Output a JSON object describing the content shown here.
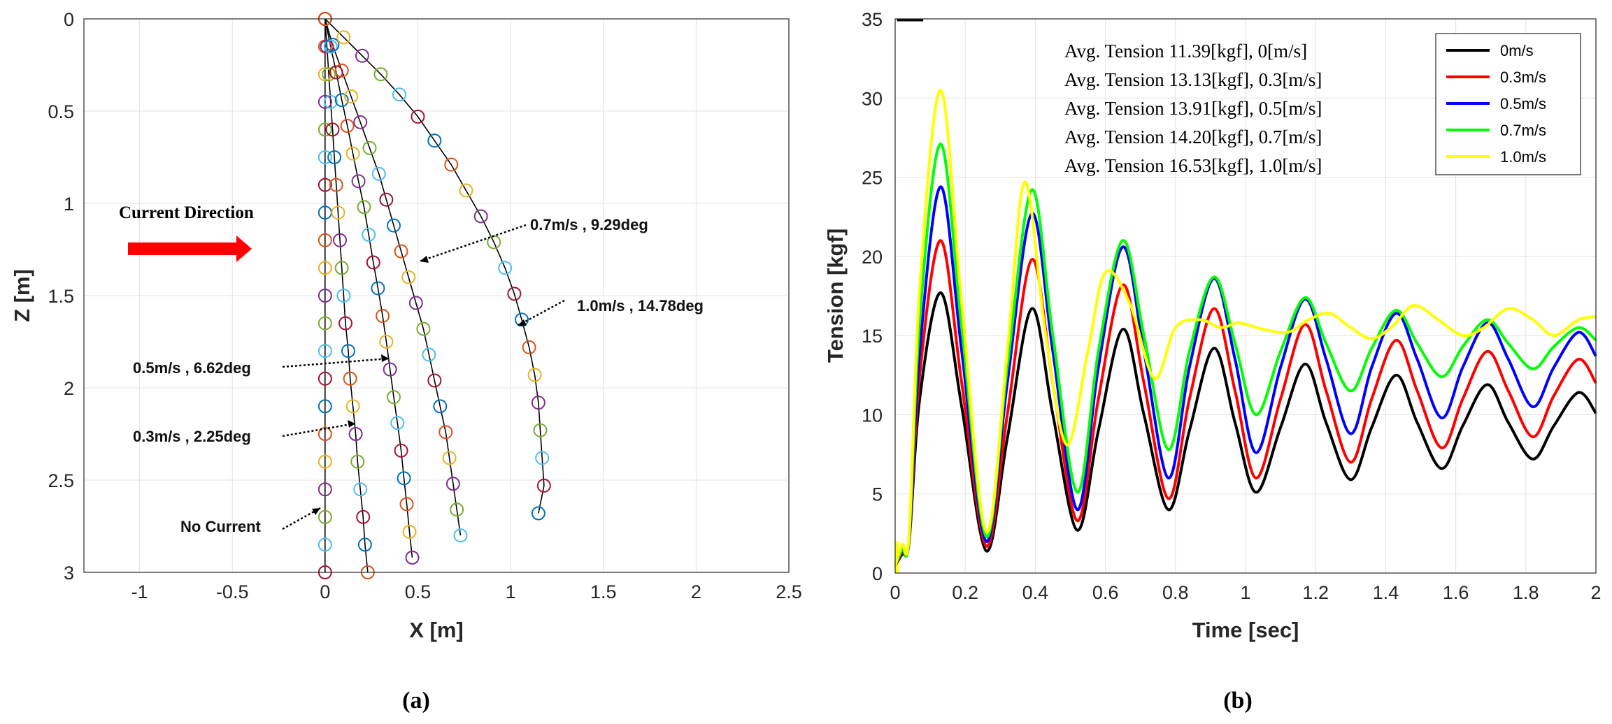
{
  "chart_data": [
    {
      "type": "scatter",
      "panel_label": "(a)",
      "title": "",
      "xlabel": "X [m]",
      "ylabel": "Z [m]",
      "xlim": [
        -1.3,
        2.5
      ],
      "ylim": [
        0,
        3
      ],
      "y_reversed": true,
      "grid": true,
      "xticks": [
        "-1",
        "-0.5",
        "0",
        "0.5",
        "1",
        "1.5",
        "2",
        "2.5"
      ],
      "yticks": [
        "0",
        "0.5",
        "1",
        "1.5",
        "2",
        "2.5",
        "3"
      ],
      "series": [
        {
          "name": "No Current",
          "angle_deg": 0,
          "x": [
            0,
            0,
            0,
            0,
            0,
            0,
            0,
            0,
            0,
            0,
            0,
            0,
            0,
            0,
            0,
            0,
            0,
            0,
            0,
            0,
            0
          ],
          "z": [
            0,
            0.15,
            0.3,
            0.45,
            0.6,
            0.75,
            0.9,
            1.05,
            1.2,
            1.35,
            1.5,
            1.65,
            1.8,
            1.95,
            2.1,
            2.25,
            2.4,
            2.55,
            2.7,
            2.85,
            3.0
          ]
        },
        {
          "name": "0.3m/s",
          "angle_deg": 2.25,
          "x": [
            0,
            0.01,
            0.02,
            0.03,
            0.04,
            0.05,
            0.06,
            0.07,
            0.08,
            0.09,
            0.1,
            0.11,
            0.125,
            0.135,
            0.15,
            0.165,
            0.175,
            0.19,
            0.205,
            0.215,
            0.23
          ],
          "z": [
            0,
            0.15,
            0.3,
            0.45,
            0.6,
            0.75,
            0.9,
            1.05,
            1.2,
            1.35,
            1.5,
            1.65,
            1.8,
            1.95,
            2.1,
            2.25,
            2.4,
            2.55,
            2.7,
            2.85,
            3.0
          ]
        },
        {
          "name": "0.5m/s",
          "angle_deg": 6.62,
          "x": [
            0,
            0.03,
            0.06,
            0.09,
            0.12,
            0.15,
            0.18,
            0.21,
            0.235,
            0.26,
            0.285,
            0.31,
            0.33,
            0.35,
            0.37,
            0.39,
            0.41,
            0.425,
            0.44,
            0.455,
            0.47
          ],
          "z": [
            0,
            0.15,
            0.29,
            0.44,
            0.58,
            0.73,
            0.88,
            1.02,
            1.17,
            1.32,
            1.46,
            1.61,
            1.75,
            1.9,
            2.05,
            2.19,
            2.34,
            2.49,
            2.63,
            2.78,
            2.92
          ]
        },
        {
          "name": "0.7m/s",
          "angle_deg": 9.29,
          "x": [
            0,
            0.04,
            0.09,
            0.14,
            0.19,
            0.24,
            0.29,
            0.33,
            0.37,
            0.41,
            0.45,
            0.49,
            0.53,
            0.56,
            0.59,
            0.62,
            0.65,
            0.67,
            0.69,
            0.71,
            0.73
          ],
          "z": [
            0,
            0.14,
            0.28,
            0.42,
            0.56,
            0.7,
            0.84,
            0.98,
            1.12,
            1.26,
            1.4,
            1.54,
            1.68,
            1.82,
            1.96,
            2.1,
            2.24,
            2.38,
            2.52,
            2.66,
            2.8
          ]
        },
        {
          "name": "1.0m/s",
          "angle_deg": 14.78,
          "x": [
            0,
            0.1,
            0.2,
            0.3,
            0.4,
            0.5,
            0.59,
            0.68,
            0.76,
            0.84,
            0.91,
            0.97,
            1.02,
            1.06,
            1.1,
            1.13,
            1.15,
            1.16,
            1.17,
            1.18,
            1.15
          ],
          "z": [
            0,
            0.1,
            0.2,
            0.3,
            0.41,
            0.53,
            0.66,
            0.79,
            0.93,
            1.07,
            1.21,
            1.35,
            1.49,
            1.63,
            1.78,
            1.93,
            2.08,
            2.23,
            2.38,
            2.53,
            2.68
          ]
        }
      ],
      "marker_colors": [
        "#0072BD",
        "#D95319",
        "#EDB120",
        "#7E2F8E",
        "#77AC30",
        "#4DBEEE",
        "#A2142F"
      ],
      "arrow_color": "#FF0000",
      "annotations": {
        "current_direction": "Current Direction",
        "a07": "0.7m/s , 9.29deg",
        "a10": "1.0m/s , 14.78deg",
        "a05": "0.5m/s , 6.62deg",
        "a03": "0.3m/s , 2.25deg",
        "a00": "No Current"
      }
    },
    {
      "type": "line",
      "panel_label": "(b)",
      "title": "",
      "xlabel": "Time [sec]",
      "ylabel": "Tension [kgf]",
      "xlim": [
        0,
        2
      ],
      "ylim": [
        0,
        35
      ],
      "grid": true,
      "xticks": [
        "0",
        "0.2",
        "0.4",
        "0.6",
        "0.8",
        "1",
        "1.2",
        "1.4",
        "1.6",
        "1.8",
        "2"
      ],
      "yticks": [
        "0",
        "5",
        "10",
        "15",
        "20",
        "25",
        "30",
        "35"
      ],
      "legend_position": "top-right",
      "series": [
        {
          "name": "0m/s",
          "color": "#000000",
          "points": [
            [
              0.02,
              1.2
            ],
            [
              0.04,
              2.0
            ],
            [
              0.07,
              11.0
            ],
            [
              0.13,
              17.7
            ],
            [
              0.19,
              10.5
            ],
            [
              0.26,
              1.4
            ],
            [
              0.32,
              8.5
            ],
            [
              0.39,
              16.7
            ],
            [
              0.45,
              10.0
            ],
            [
              0.52,
              2.7
            ],
            [
              0.58,
              9.0
            ],
            [
              0.65,
              15.4
            ],
            [
              0.71,
              10.0
            ],
            [
              0.78,
              4.0
            ],
            [
              0.84,
              9.0
            ],
            [
              0.91,
              14.2
            ],
            [
              0.97,
              9.5
            ],
            [
              1.03,
              5.1
            ],
            [
              1.1,
              9.2
            ],
            [
              1.17,
              13.2
            ],
            [
              1.23,
              9.5
            ],
            [
              1.3,
              5.9
            ],
            [
              1.36,
              9.2
            ],
            [
              1.43,
              12.5
            ],
            [
              1.49,
              9.5
            ],
            [
              1.56,
              6.6
            ],
            [
              1.62,
              9.3
            ],
            [
              1.69,
              11.9
            ],
            [
              1.75,
              9.5
            ],
            [
              1.82,
              7.2
            ],
            [
              1.88,
              9.3
            ],
            [
              1.95,
              11.4
            ],
            [
              2.0,
              10.1
            ]
          ]
        },
        {
          "name": "0.3m/s",
          "color": "#FF0000",
          "points": [
            [
              0.02,
              1.3
            ],
            [
              0.04,
              2.1
            ],
            [
              0.07,
              12.5
            ],
            [
              0.13,
              21.0
            ],
            [
              0.19,
              12.0
            ],
            [
              0.26,
              1.7
            ],
            [
              0.32,
              10.0
            ],
            [
              0.39,
              19.8
            ],
            [
              0.45,
              12.0
            ],
            [
              0.52,
              3.3
            ],
            [
              0.58,
              11.0
            ],
            [
              0.65,
              18.2
            ],
            [
              0.71,
              12.0
            ],
            [
              0.78,
              4.7
            ],
            [
              0.84,
              11.0
            ],
            [
              0.91,
              16.7
            ],
            [
              0.97,
              11.5
            ],
            [
              1.03,
              6.0
            ],
            [
              1.1,
              11.0
            ],
            [
              1.17,
              15.7
            ],
            [
              1.23,
              11.5
            ],
            [
              1.3,
              7.0
            ],
            [
              1.36,
              11.0
            ],
            [
              1.43,
              14.7
            ],
            [
              1.49,
              11.5
            ],
            [
              1.56,
              7.9
            ],
            [
              1.62,
              11.0
            ],
            [
              1.69,
              14.0
            ],
            [
              1.75,
              11.5
            ],
            [
              1.82,
              8.6
            ],
            [
              1.88,
              11.2
            ],
            [
              1.95,
              13.5
            ],
            [
              2.0,
              12.0
            ]
          ]
        },
        {
          "name": "0.5m/s",
          "color": "#0000FF",
          "points": [
            [
              0.02,
              1.4
            ],
            [
              0.04,
              2.2
            ],
            [
              0.07,
              14.0
            ],
            [
              0.13,
              24.4
            ],
            [
              0.19,
              14.0
            ],
            [
              0.26,
              2.0
            ],
            [
              0.32,
              12.0
            ],
            [
              0.39,
              22.7
            ],
            [
              0.45,
              14.0
            ],
            [
              0.52,
              4.0
            ],
            [
              0.58,
              13.0
            ],
            [
              0.65,
              20.6
            ],
            [
              0.71,
              14.0
            ],
            [
              0.78,
              6.0
            ],
            [
              0.84,
              13.0
            ],
            [
              0.91,
              18.6
            ],
            [
              0.97,
              13.5
            ],
            [
              1.03,
              7.6
            ],
            [
              1.1,
              13.0
            ],
            [
              1.17,
              17.3
            ],
            [
              1.23,
              13.5
            ],
            [
              1.3,
              8.8
            ],
            [
              1.36,
              13.0
            ],
            [
              1.43,
              16.4
            ],
            [
              1.49,
              13.5
            ],
            [
              1.56,
              9.8
            ],
            [
              1.62,
              13.0
            ],
            [
              1.69,
              15.8
            ],
            [
              1.75,
              13.5
            ],
            [
              1.82,
              10.5
            ],
            [
              1.88,
              13.0
            ],
            [
              1.95,
              15.2
            ],
            [
              2.0,
              13.7
            ]
          ]
        },
        {
          "name": "0.7m/s",
          "color": "#00FF00",
          "points": [
            [
              0.02,
              1.5
            ],
            [
              0.04,
              2.3
            ],
            [
              0.07,
              16.0
            ],
            [
              0.13,
              27.1
            ],
            [
              0.19,
              15.5
            ],
            [
              0.26,
              2.3
            ],
            [
              0.32,
              13.0
            ],
            [
              0.39,
              24.2
            ],
            [
              0.45,
              15.0
            ],
            [
              0.52,
              5.1
            ],
            [
              0.58,
              14.0
            ],
            [
              0.65,
              21.0
            ],
            [
              0.71,
              15.0
            ],
            [
              0.78,
              7.8
            ],
            [
              0.84,
              14.0
            ],
            [
              0.91,
              18.7
            ],
            [
              0.97,
              14.5
            ],
            [
              1.03,
              10.0
            ],
            [
              1.1,
              14.0
            ],
            [
              1.17,
              17.4
            ],
            [
              1.23,
              14.5
            ],
            [
              1.3,
              11.5
            ],
            [
              1.36,
              14.2
            ],
            [
              1.43,
              16.6
            ],
            [
              1.49,
              14.5
            ],
            [
              1.56,
              12.4
            ],
            [
              1.62,
              14.3
            ],
            [
              1.69,
              16.0
            ],
            [
              1.75,
              14.5
            ],
            [
              1.82,
              12.9
            ],
            [
              1.88,
              14.3
            ],
            [
              1.95,
              15.5
            ],
            [
              2.0,
              14.7
            ]
          ]
        },
        {
          "name": "1.0m/s",
          "color": "#FFFF00",
          "points": [
            [
              0.02,
              1.8
            ],
            [
              0.04,
              2.5
            ],
            [
              0.07,
              18.0
            ],
            [
              0.13,
              30.5
            ],
            [
              0.19,
              17.0
            ],
            [
              0.26,
              2.6
            ],
            [
              0.32,
              14.0
            ],
            [
              0.37,
              24.7
            ],
            [
              0.43,
              15.0
            ],
            [
              0.49,
              8.1
            ],
            [
              0.55,
              14.0
            ],
            [
              0.6,
              19.0
            ],
            [
              0.67,
              17.0
            ],
            [
              0.74,
              12.3
            ],
            [
              0.8,
              15.5
            ],
            [
              0.87,
              16.0
            ],
            [
              0.93,
              15.5
            ],
            [
              0.98,
              15.8
            ],
            [
              1.05,
              15.4
            ],
            [
              1.12,
              15.2
            ],
            [
              1.18,
              16.0
            ],
            [
              1.24,
              16.4
            ],
            [
              1.3,
              15.5
            ],
            [
              1.36,
              14.8
            ],
            [
              1.42,
              15.6
            ],
            [
              1.48,
              16.9
            ],
            [
              1.55,
              16.0
            ],
            [
              1.62,
              15.0
            ],
            [
              1.68,
              15.5
            ],
            [
              1.75,
              16.7
            ],
            [
              1.82,
              16.0
            ],
            [
              1.88,
              15.0
            ],
            [
              1.95,
              16.0
            ],
            [
              2.0,
              16.2
            ]
          ]
        }
      ],
      "avg_tension": [
        "Avg. Tension 11.39[kgf], 0[m/s]",
        "Avg. Tension 13.13[kgf], 0.3[m/s]",
        "Avg. Tension 13.91[kgf], 0.5[m/s]",
        "Avg. Tension 14.20[kgf], 0.7[m/s]",
        "Avg. Tension 16.53[kgf], 1.0[m/s]"
      ]
    }
  ]
}
